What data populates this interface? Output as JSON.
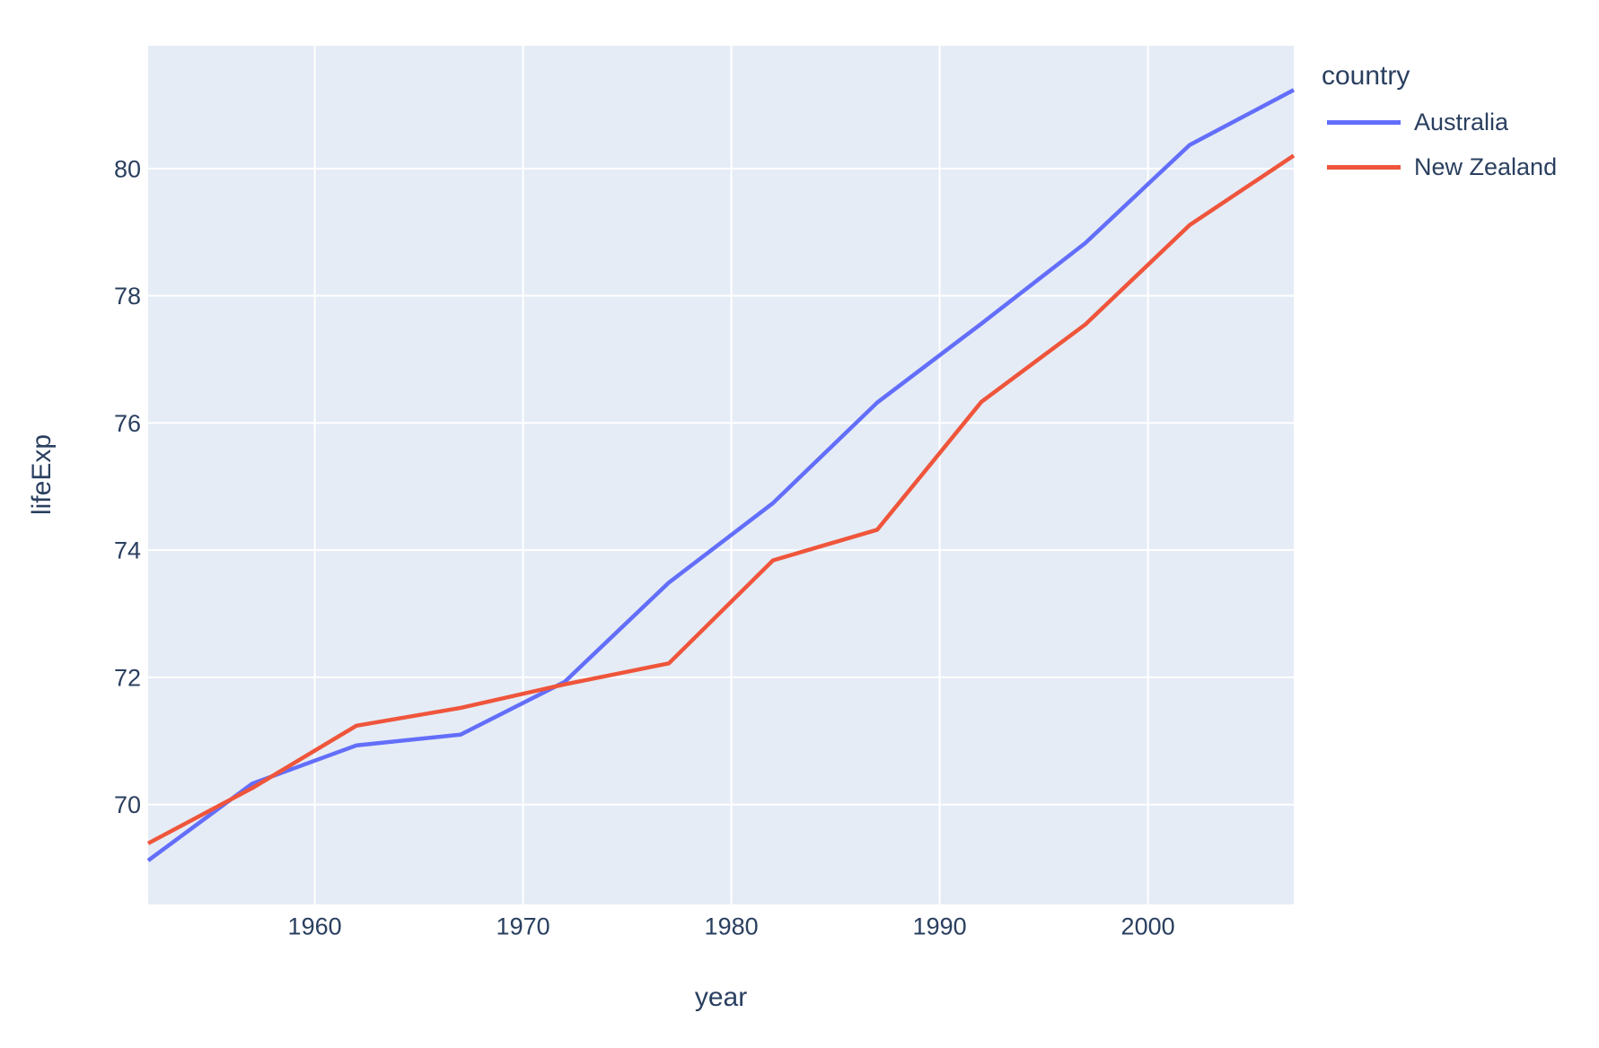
{
  "figure": {
    "legend_title": "country"
  },
  "chart_data": {
    "type": "line",
    "title": "",
    "xlabel": "year",
    "ylabel": "lifeExp",
    "x": [
      1952,
      1957,
      1962,
      1967,
      1972,
      1977,
      1982,
      1987,
      1992,
      1997,
      2002,
      2007
    ],
    "series": [
      {
        "name": "Australia",
        "color": "#636EFA",
        "values": [
          69.12,
          70.33,
          70.93,
          71.1,
          71.93,
          73.49,
          74.74,
          76.32,
          77.56,
          78.83,
          80.37,
          81.235
        ]
      },
      {
        "name": "New Zealand",
        "color": "#EF553B",
        "values": [
          69.39,
          70.26,
          71.24,
          71.52,
          71.89,
          72.22,
          73.84,
          74.32,
          76.33,
          77.55,
          79.11,
          80.204
        ]
      }
    ],
    "xlim": [
      1952,
      2007
    ],
    "ylim": [
      68.43,
      81.93
    ],
    "xticks": [
      1960,
      1970,
      1980,
      1990,
      2000
    ],
    "yticks": [
      70,
      72,
      74,
      76,
      78,
      80
    ],
    "grid": true,
    "legend_position": "right",
    "plot_bg": "#E5ECF6",
    "grid_color": "#FFFFFF",
    "text_color": "#2a3f5f"
  }
}
